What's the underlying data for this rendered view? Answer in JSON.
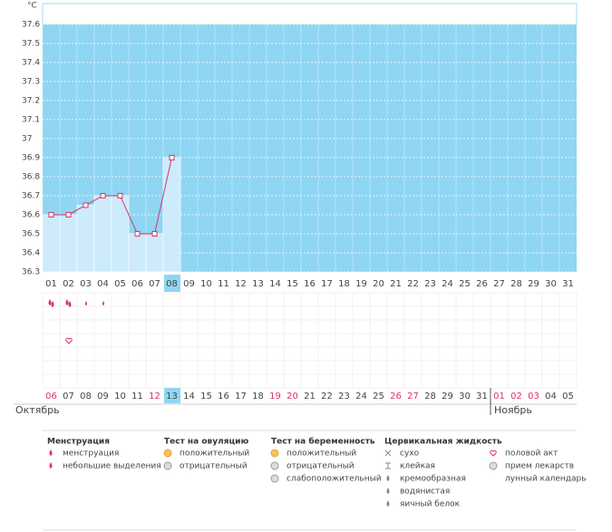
{
  "chart_data": {
    "type": "line",
    "y_unit": "°C",
    "categories": [
      "01",
      "02",
      "03",
      "04",
      "05",
      "06",
      "07",
      "08",
      "09",
      "10",
      "11",
      "12",
      "13",
      "14",
      "15",
      "16",
      "17",
      "18",
      "19",
      "20",
      "21",
      "22",
      "23",
      "24",
      "25",
      "26",
      "27",
      "28",
      "29",
      "30",
      "31"
    ],
    "values": [
      36.6,
      36.6,
      36.65,
      36.7,
      36.7,
      36.5,
      36.5,
      36.9,
      null,
      null,
      null,
      null,
      null,
      null,
      null,
      null,
      null,
      null,
      null,
      null,
      null,
      null,
      null,
      null,
      null,
      null,
      null,
      null,
      null,
      null,
      null
    ],
    "selected_category": "08",
    "ylim": [
      36.3,
      37.7
    ],
    "yticks": [
      36.3,
      36.4,
      36.5,
      36.6,
      36.7,
      36.8,
      36.9,
      37,
      37.1,
      37.2,
      37.3,
      37.4,
      37.5,
      37.6
    ],
    "color": "#d6336c",
    "area_color": "#cdebfa",
    "background": "#8fd6f2"
  },
  "dates": [
    {
      "label": "06",
      "color": "#e0306a"
    },
    {
      "label": "07"
    },
    {
      "label": "08"
    },
    {
      "label": "09"
    },
    {
      "label": "10"
    },
    {
      "label": "11"
    },
    {
      "label": "12",
      "color": "#e0306a"
    },
    {
      "label": "13",
      "selected": true
    },
    {
      "label": "14"
    },
    {
      "label": "15"
    },
    {
      "label": "16"
    },
    {
      "label": "17"
    },
    {
      "label": "18"
    },
    {
      "label": "19",
      "color": "#e0306a"
    },
    {
      "label": "20",
      "color": "#e0306a"
    },
    {
      "label": "21"
    },
    {
      "label": "22"
    },
    {
      "label": "23"
    },
    {
      "label": "24"
    },
    {
      "label": "25"
    },
    {
      "label": "26",
      "color": "#e0306a"
    },
    {
      "label": "27",
      "color": "#e0306a"
    },
    {
      "label": "28"
    },
    {
      "label": "29"
    },
    {
      "label": "30"
    },
    {
      "label": "31"
    },
    {
      "label": "01",
      "color": "#e0306a"
    },
    {
      "label": "02",
      "color": "#e0306a"
    },
    {
      "label": "03",
      "color": "#e0306a"
    },
    {
      "label": "04"
    },
    {
      "label": "05"
    }
  ],
  "months": [
    "Октябрь",
    "Ноябрь"
  ],
  "legend": [
    {
      "title": "Менструация",
      "items": [
        "менструация",
        "небольшие выделения"
      ]
    },
    {
      "title": "Тест на овуляцию",
      "items": [
        "положительный",
        "отрицательный"
      ]
    },
    {
      "title": "Тест на беременность",
      "items": [
        "положительный",
        "отрицательный",
        "слабоположительный"
      ]
    },
    {
      "title": "Цервикальная жидкость",
      "items": [
        "сухо",
        "клейкая",
        "кремообразная",
        "водянистая",
        "яичный белок"
      ]
    },
    {
      "items": [
        "половой акт",
        "прием лекарств",
        "лунный календарь"
      ]
    }
  ]
}
